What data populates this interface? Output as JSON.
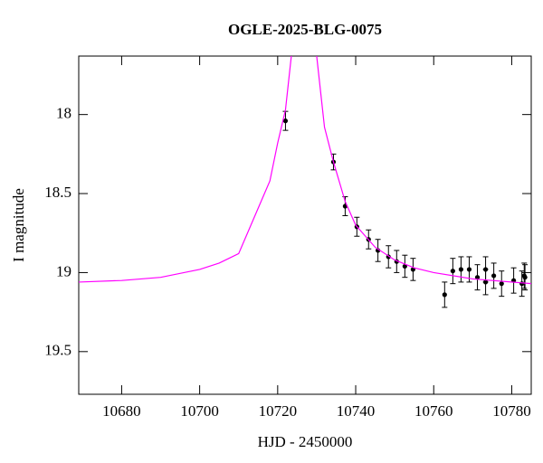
{
  "chart_data": {
    "type": "scatter",
    "title": "OGLE-2025-BLG-0075",
    "xlabel": "HJD - 2450000",
    "ylabel": "I magnitude",
    "xlim": [
      10669,
      10785
    ],
    "ylim": [
      19.77,
      17.63
    ],
    "xticks": [
      10680,
      10700,
      10720,
      10740,
      10760,
      10780
    ],
    "yticks": [
      18,
      18.5,
      19,
      19.5
    ],
    "series": [
      {
        "type": "scatter",
        "color": "#000000",
        "x": [
          10722.0,
          10734.3,
          10737.3,
          10740.3,
          10743.3,
          10745.7,
          10748.4,
          10750.5,
          10752.6,
          10754.7,
          10762.8,
          10764.9,
          10767.0,
          10769.1,
          10771.2,
          10773.3,
          10773.3,
          10775.4,
          10777.4,
          10780.5,
          10782.6,
          10783.2,
          10783.4
        ],
        "values": [
          18.04,
          18.3,
          18.58,
          18.71,
          18.79,
          18.86,
          18.9,
          18.93,
          18.96,
          18.98,
          19.14,
          18.99,
          18.98,
          18.98,
          19.03,
          18.98,
          19.06,
          19.02,
          19.07,
          19.05,
          19.07,
          19.02,
          19.03
        ],
        "errors": [
          0.06,
          0.05,
          0.06,
          0.06,
          0.06,
          0.07,
          0.07,
          0.07,
          0.07,
          0.07,
          0.08,
          0.08,
          0.08,
          0.08,
          0.08,
          0.08,
          0.08,
          0.08,
          0.08,
          0.08,
          0.08,
          0.08,
          0.08
        ]
      },
      {
        "type": "line",
        "color": "#ff00ff",
        "x": [
          10669,
          10680,
          10690,
          10700,
          10705,
          10710,
          10714,
          10718,
          10720,
          10722,
          10723.5,
          null,
          10730,
          10732,
          10734.3,
          10737.3,
          10740,
          10745,
          10750,
          10755,
          10760,
          10770,
          10785
        ],
        "values": [
          19.06,
          19.05,
          19.03,
          18.98,
          18.94,
          18.88,
          18.65,
          18.42,
          18.18,
          17.97,
          17.63,
          null,
          17.63,
          18.08,
          18.3,
          18.55,
          18.7,
          18.84,
          18.92,
          18.97,
          19.0,
          19.04,
          19.07
        ]
      }
    ]
  }
}
